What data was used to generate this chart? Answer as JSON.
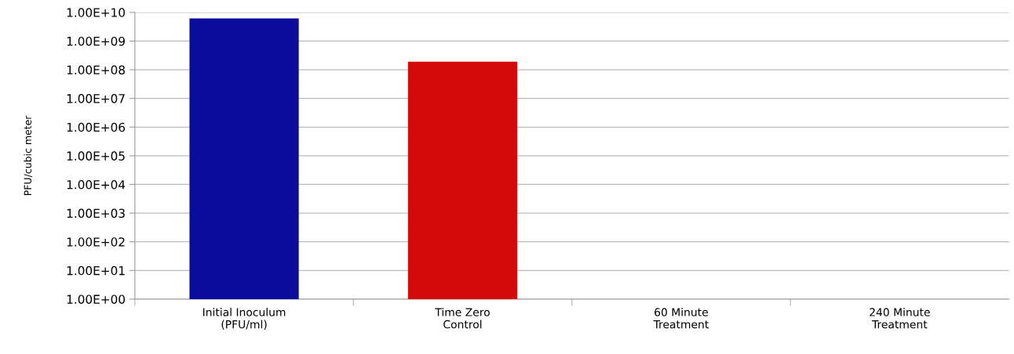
{
  "chart_data": {
    "type": "bar",
    "ylabel": "PFU/cubic meter",
    "categories": [
      "Initial Inoculum\n(PFU/ml)",
      "Time Zero\nControl",
      "60 Minute\nTreatment",
      "240 Minute\nTreatment"
    ],
    "values": [
      6200000000.0,
      190000000.0,
      null,
      null
    ],
    "colors": [
      "#0c0c9c",
      "#d40a0a",
      "#808080",
      "#808080"
    ],
    "log": "y",
    "ylim": [
      1,
      10000000000.0
    ],
    "yticks": [
      {
        "value": 1,
        "label": "1.00E+00"
      },
      {
        "value": 10,
        "label": "1.00E+01"
      },
      {
        "value": 100,
        "label": "1.00E+02"
      },
      {
        "value": 1000,
        "label": "1.00E+03"
      },
      {
        "value": 10000,
        "label": "1.00E+04"
      },
      {
        "value": 100000,
        "label": "1.00E+05"
      },
      {
        "value": 1000000,
        "label": "1.00E+06"
      },
      {
        "value": 10000000,
        "label": "1.00E+07"
      },
      {
        "value": 100000000,
        "label": "1.00E+08"
      },
      {
        "value": 1000000000,
        "label": "1.00E+09"
      },
      {
        "value": 10000000000,
        "label": "1.00E+10"
      }
    ],
    "grid": "y"
  }
}
